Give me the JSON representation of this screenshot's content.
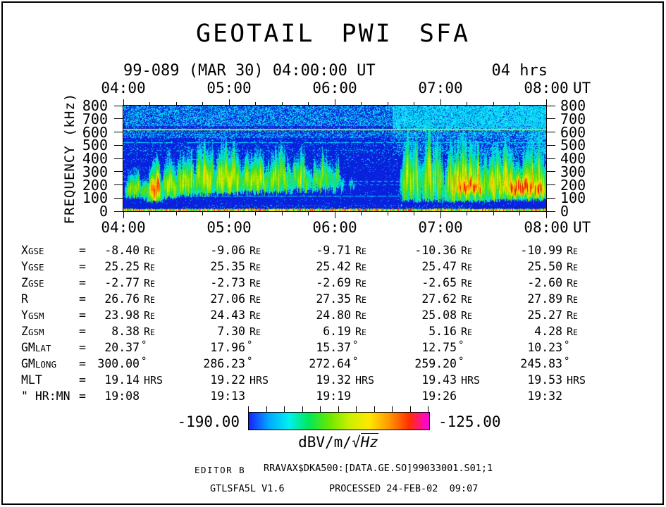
{
  "header": {
    "title": "GEOTAIL PWI SFA",
    "date_line": "99-089 (MAR 30) 04:00:00 UT",
    "duration": "04 hrs"
  },
  "time_axis": {
    "labels": [
      "04:00",
      "05:00",
      "06:00",
      "07:00",
      "08:00"
    ],
    "suffix": "UT",
    "start_hour": 4,
    "end_hour": 8,
    "minor_ticks_per_hour": 3
  },
  "freq_axis": {
    "title": "FREQUENCY (kHz)",
    "ticks": [
      800,
      700,
      600,
      500,
      400,
      300,
      200,
      100,
      0
    ],
    "unit": "kHz"
  },
  "table": {
    "eq": "=",
    "rows": [
      {
        "label": "X",
        "sub": "GSE",
        "unit": "Re",
        "values": [
          "-8.40",
          "-9.06",
          "-9.71",
          "-10.36",
          "-10.99"
        ]
      },
      {
        "label": "Y",
        "sub": "GSE",
        "unit": "Re",
        "values": [
          "25.25",
          "25.35",
          "25.42",
          "25.47",
          "25.50"
        ]
      },
      {
        "label": "Z",
        "sub": "GSE",
        "unit": "Re",
        "values": [
          "-2.77",
          "-2.73",
          "-2.69",
          "-2.65",
          "-2.60"
        ]
      },
      {
        "label": "R",
        "sub": "",
        "unit": "Re",
        "values": [
          "26.76",
          "27.06",
          "27.35",
          "27.62",
          "27.89"
        ]
      },
      {
        "label": "Y",
        "sub": "GSM",
        "unit": "Re",
        "values": [
          "23.98",
          "24.43",
          "24.80",
          "25.08",
          "25.27"
        ]
      },
      {
        "label": "Z",
        "sub": "GSM",
        "unit": "Re",
        "values": [
          "8.38",
          "7.30",
          "6.19",
          "5.16",
          "4.28"
        ]
      },
      {
        "label": "GM",
        "sub": "LAT",
        "unit": "deg",
        "values": [
          "20.37",
          "17.96",
          "15.37",
          "12.75",
          "10.23"
        ]
      },
      {
        "label": "GM",
        "sub": "LONG",
        "unit": "deg",
        "values": [
          "300.00",
          "286.23",
          "272.64",
          "259.20",
          "245.83"
        ]
      },
      {
        "label": "MLT",
        "sub": "",
        "unit": "HRS",
        "values": [
          "19.14",
          "19.22",
          "19.32",
          "19.43",
          "19.53"
        ]
      },
      {
        "label": "\" HR:MN",
        "sub": "",
        "unit": "",
        "values": [
          "19:08",
          "19:13",
          "19:19",
          "19:26",
          "19:32"
        ]
      }
    ]
  },
  "colorbar": {
    "min_label": "-190.00",
    "max_label": "-125.00",
    "unit_prefix": "dBV/m/",
    "unit_radical": "√",
    "unit_hz": "Hz",
    "tick_count": 11,
    "gradient": [
      "#1820ff",
      "#00a8ff",
      "#00f0f0",
      "#00e858",
      "#68e800",
      "#c8f000",
      "#ffe800",
      "#ff9800",
      "#ff3000",
      "#ff00e8"
    ]
  },
  "footer": {
    "editor": "EDITOR B",
    "file": "RRAVAX$DKA500:[DATA.GE.SO]99033001.S01;1",
    "program": "GTLSFA5L V1.6",
    "processed": "PROCESSED 24-FEB-02  09:07"
  },
  "chart_data": {
    "type": "heatmap",
    "title": "GEOTAIL PWI SFA",
    "subtitle": "99-089 (MAR 30) 04:00:00 UT, 04 hrs",
    "xlabel": "UT",
    "ylabel": "FREQUENCY (kHz)",
    "x_ticks": [
      "04:00",
      "05:00",
      "06:00",
      "07:00",
      "08:00"
    ],
    "x_range_hours": [
      4,
      8
    ],
    "y_ticks": [
      0,
      100,
      200,
      300,
      400,
      500,
      600,
      700,
      800
    ],
    "ylim": [
      0,
      800
    ],
    "z_label": "dBV/m/√Hz",
    "z_range": [
      -190.0,
      -125.0
    ],
    "background_color": "#0822dd",
    "palette": [
      [
        0.14,
        "#00c0f0"
      ],
      [
        0.24,
        "#00ead8"
      ],
      [
        0.36,
        "#20dc50"
      ],
      [
        0.5,
        "#70e400"
      ],
      [
        0.62,
        "#c0ec00"
      ],
      [
        0.72,
        "#ffe400"
      ],
      [
        0.84,
        "#ff9000"
      ],
      [
        0.94,
        "#ff3400"
      ],
      [
        1.12,
        "#d40000"
      ]
    ],
    "speckle_bands": [
      {
        "t": [
          4,
          8
        ],
        "f": [
          648,
          800
        ],
        "density": 0.48
      },
      {
        "t": [
          4,
          8
        ],
        "f": [
          555,
          615
        ],
        "density": 0.36
      },
      {
        "t": [
          4,
          8
        ],
        "f": [
          615,
          648
        ],
        "density": 0.12
      },
      {
        "t": [
          4,
          8
        ],
        "f": [
          430,
          555
        ],
        "density": 0.09
      },
      {
        "t": [
          4,
          8
        ],
        "f": [
          300,
          430
        ],
        "density": 0.045
      },
      {
        "t": [
          4,
          8
        ],
        "f": [
          45,
          300
        ],
        "density": 0.02
      },
      {
        "t": [
          6.55,
          8
        ],
        "f": [
          615,
          800
        ],
        "density": 0.8
      },
      {
        "t": [
          6.55,
          8
        ],
        "f": [
          430,
          615
        ],
        "density": 0.28
      },
      {
        "t": [
          7.85,
          8
        ],
        "f": [
          380,
          800
        ],
        "density": 0.5
      },
      {
        "t": [
          4.5,
          7.3
        ],
        "f": [
          8,
          45
        ],
        "density": 0.1
      }
    ],
    "h_lines": [
      {
        "f": 620,
        "color": "#b4e400",
        "t": [
          4,
          8
        ],
        "dash": [
          300,
          1
        ],
        "thick": 2,
        "over": true
      },
      {
        "f": 583,
        "color": "#00e0ff",
        "t": [
          4,
          8
        ],
        "dash": [
          3,
          5
        ]
      },
      {
        "f": 524,
        "color": "#00e0ff",
        "t": [
          4,
          8
        ],
        "dash": [
          14,
          3
        ]
      },
      {
        "f": 462,
        "color": "#00e0ff",
        "t": [
          4,
          8
        ],
        "dash": [
          2,
          6
        ]
      },
      {
        "f": 397,
        "color": "#00e0ff",
        "t": [
          4,
          8
        ],
        "dash": [
          2,
          10
        ]
      },
      {
        "f": 230,
        "color": "#00e0ff",
        "t": [
          4,
          8
        ],
        "dash": [
          5,
          4
        ]
      },
      {
        "f": 205,
        "color": "#00e0ff",
        "t": [
          5.9,
          8
        ],
        "dash": [
          3,
          5
        ]
      },
      {
        "f": 119,
        "color": "#00e0ff",
        "t": [
          4,
          8
        ],
        "dash": [
          12,
          2
        ]
      }
    ],
    "emissions": [
      {
        "t": [
          4.02,
          4.17
        ],
        "f": [
          115,
          330
        ],
        "peak": 0.62,
        "spike": 0.4,
        "streak": 0.3
      },
      {
        "t": [
          4.15,
          4.25
        ],
        "f": [
          105,
          265
        ],
        "peak": 0.52,
        "spike": 0.35,
        "streak": 0.3
      },
      {
        "t": [
          4.23,
          4.36
        ],
        "f": [
          80,
          395
        ],
        "peak": 1.08,
        "spike": 0.45,
        "streak": 0.35
      },
      {
        "t": [
          4.36,
          4.52
        ],
        "f": [
          110,
          420
        ],
        "peak": 0.72,
        "spike": 0.5,
        "streak": 0.35
      },
      {
        "t": [
          4.5,
          4.68
        ],
        "f": [
          125,
          470
        ],
        "peak": 0.76,
        "spike": 0.55,
        "streak": 0.4
      },
      {
        "t": [
          4.66,
          4.86
        ],
        "f": [
          135,
          555
        ],
        "peak": 0.76,
        "spike": 0.6,
        "streak": 0.4
      },
      {
        "t": [
          4.84,
          5.13
        ],
        "f": [
          140,
          520
        ],
        "peak": 0.78,
        "spike": 0.55,
        "streak": 0.4
      },
      {
        "t": [
          5.11,
          5.38
        ],
        "f": [
          150,
          465
        ],
        "peak": 0.76,
        "spike": 0.55,
        "streak": 0.4
      },
      {
        "t": [
          5.36,
          5.59
        ],
        "f": [
          150,
          515
        ],
        "peak": 0.72,
        "spike": 0.6,
        "streak": 0.45
      },
      {
        "t": [
          5.57,
          5.77
        ],
        "f": [
          160,
          465
        ],
        "peak": 0.68,
        "spike": 0.6,
        "streak": 0.5
      },
      {
        "t": [
          5.75,
          6.07
        ],
        "f": [
          165,
          435
        ],
        "peak": 0.62,
        "spike": 0.65,
        "streak": 0.55
      },
      {
        "t": [
          6.13,
          6.19
        ],
        "f": [
          170,
          260
        ],
        "peak": 0.3,
        "spike": 0.3,
        "streak": 0.3
      },
      {
        "t": [
          6.62,
          6.82
        ],
        "f": [
          85,
          615
        ],
        "peak": 0.74,
        "spike": 0.55,
        "streak": 0.55
      },
      {
        "t": [
          6.8,
          7.03
        ],
        "f": [
          85,
          635
        ],
        "peak": 0.78,
        "spike": 0.55,
        "streak": 0.6
      },
      {
        "t": [
          7.01,
          7.46
        ],
        "f": [
          80,
          555
        ],
        "peak": 0.85,
        "spike": 0.55,
        "streak": 0.55
      },
      {
        "t": [
          7.12,
          7.43
        ],
        "f": [
          130,
          330
        ],
        "peak": 1.08,
        "spike": 0.35,
        "streak": 0.4
      },
      {
        "t": [
          7.41,
          7.76
        ],
        "f": [
          90,
          515
        ],
        "peak": 0.84,
        "spike": 0.5,
        "streak": 0.5
      },
      {
        "t": [
          7.55,
          8.03
        ],
        "f": [
          115,
          330
        ],
        "peak": 1.1,
        "spike": 0.3,
        "streak": 0.4
      },
      {
        "t": [
          7.73,
          8.03
        ],
        "f": [
          90,
          535
        ],
        "peak": 0.8,
        "spike": 0.5,
        "streak": 0.5
      }
    ],
    "cyan_streaks": [
      {
        "t": 4.73
      },
      {
        "t": 4.84
      },
      {
        "t": 4.97
      },
      {
        "t": 5.04
      }
    ],
    "bottom_strip": {
      "f": [
        0,
        7
      ],
      "colors": [
        "#ffe800",
        "#ffe800",
        "#ff9000",
        "#7ce800",
        "#7ce800",
        "#ff3000",
        "#00e060"
      ]
    }
  }
}
